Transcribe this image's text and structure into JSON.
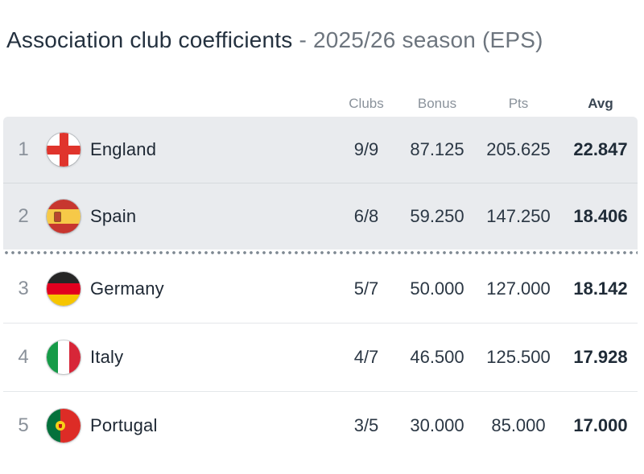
{
  "title": {
    "main": "Association club coefficients",
    "suffix": " - 2025/26 season (EPS)"
  },
  "columns": {
    "clubs": "Clubs",
    "bonus": "Bonus",
    "pts": "Pts",
    "avg": "Avg"
  },
  "rows": [
    {
      "rank": "1",
      "country": "England",
      "flag": "england",
      "clubs": "9/9",
      "bonus": "87.125",
      "pts": "205.625",
      "avg": "22.847",
      "qualified_zone": true
    },
    {
      "rank": "2",
      "country": "Spain",
      "flag": "spain",
      "clubs": "6/8",
      "bonus": "59.250",
      "pts": "147.250",
      "avg": "18.406",
      "qualified_zone": true
    },
    {
      "rank": "3",
      "country": "Germany",
      "flag": "germany",
      "clubs": "5/7",
      "bonus": "50.000",
      "pts": "127.000",
      "avg": "18.142",
      "qualified_zone": false
    },
    {
      "rank": "4",
      "country": "Italy",
      "flag": "italy",
      "clubs": "4/7",
      "bonus": "46.500",
      "pts": "125.500",
      "avg": "17.928",
      "qualified_zone": false
    },
    {
      "rank": "5",
      "country": "Portugal",
      "flag": "portugal",
      "clubs": "3/5",
      "bonus": "30.000",
      "pts": "85.000",
      "avg": "17.000",
      "qualified_zone": false
    }
  ],
  "colors": {
    "title_text": "#24313f",
    "title_suffix_text": "#6d757e",
    "header_muted_text": "#8a929b",
    "qualified_row_background": "#e9ebee",
    "cutoff_dot_color": "#7e8892",
    "england_red": "#e0342c",
    "spain_red": "#c7362f",
    "spain_yellow": "#f6c948",
    "germany_black": "#262626",
    "germany_red": "#e1001f",
    "germany_gold": "#f6c500",
    "italy_green": "#169b48",
    "italy_red": "#d72638",
    "portugal_green": "#04713c",
    "portugal_red": "#dd2c26"
  }
}
